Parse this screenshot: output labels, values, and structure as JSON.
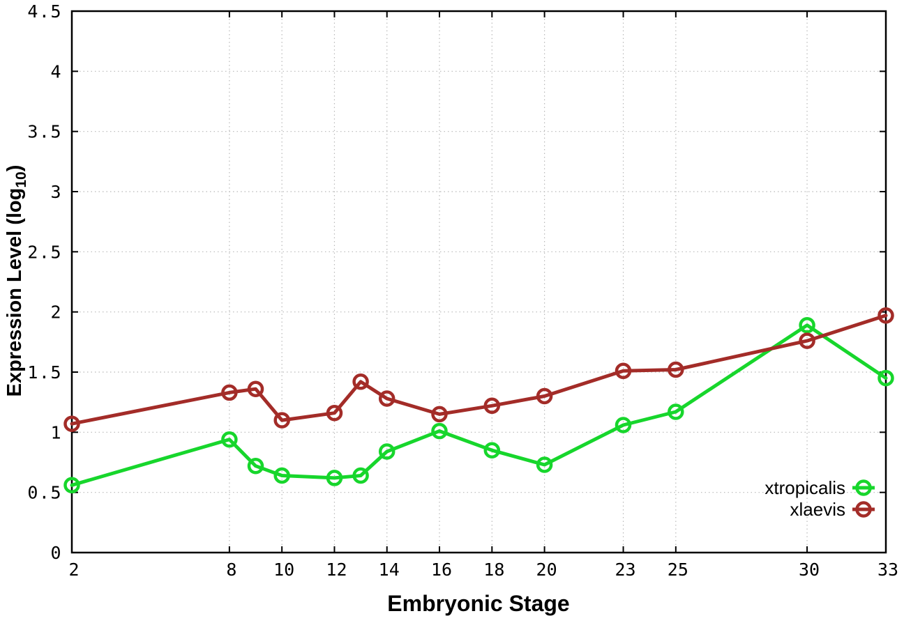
{
  "chart_data": {
    "type": "line",
    "title": "",
    "xlabel": "Embryonic Stage",
    "ylabel": "Expression Level (log10)",
    "ylabel_parts": {
      "main": "Expression Level (log",
      "sub": "10",
      "suffix": ")"
    },
    "xlim": [
      2,
      33
    ],
    "ylim": [
      0,
      4.5
    ],
    "grid": true,
    "legend_position": "inside-bottom-right",
    "x_ticks": [
      {
        "value": 2,
        "label": "2"
      },
      {
        "value": 8,
        "label": "8"
      },
      {
        "value": 10,
        "label": "10"
      },
      {
        "value": 12,
        "label": "12"
      },
      {
        "value": 14,
        "label": "14"
      },
      {
        "value": 16,
        "label": "16"
      },
      {
        "value": 18,
        "label": "18"
      },
      {
        "value": 20,
        "label": "20"
      },
      {
        "value": 23,
        "label": "23"
      },
      {
        "value": 25,
        "label": "25"
      },
      {
        "value": 30,
        "label": "30"
      },
      {
        "value": 33,
        "label": "33"
      }
    ],
    "y_ticks": [
      {
        "value": 0,
        "label": "0"
      },
      {
        "value": 0.5,
        "label": "0.5"
      },
      {
        "value": 1,
        "label": "1"
      },
      {
        "value": 1.5,
        "label": "1.5"
      },
      {
        "value": 2,
        "label": "2"
      },
      {
        "value": 2.5,
        "label": "2.5"
      },
      {
        "value": 3,
        "label": "3"
      },
      {
        "value": 3.5,
        "label": "3.5"
      },
      {
        "value": 4,
        "label": "4"
      },
      {
        "value": 4.5,
        "label": "4.5"
      }
    ],
    "x": [
      2,
      8,
      9,
      10,
      12,
      13,
      14,
      16,
      18,
      20,
      23,
      25,
      30,
      33
    ],
    "series": [
      {
        "name": "xtropicalis",
        "color": "#17d62c",
        "values": [
          0.56,
          0.94,
          0.72,
          0.64,
          0.62,
          0.64,
          0.84,
          1.01,
          0.85,
          0.73,
          1.06,
          1.17,
          1.89,
          1.45
        ]
      },
      {
        "name": "xlaevis",
        "color": "#a32c28",
        "values": [
          1.07,
          1.33,
          1.36,
          1.1,
          1.16,
          1.42,
          1.28,
          1.15,
          1.22,
          1.3,
          1.51,
          1.52,
          1.76,
          1.97
        ]
      }
    ]
  },
  "colors": {
    "background": "#ffffff",
    "axis": "#000000",
    "grid": "#b8b8b8",
    "tick_text": "#000000",
    "series_green": "#17d62c",
    "series_brown": "#a32c28"
  }
}
